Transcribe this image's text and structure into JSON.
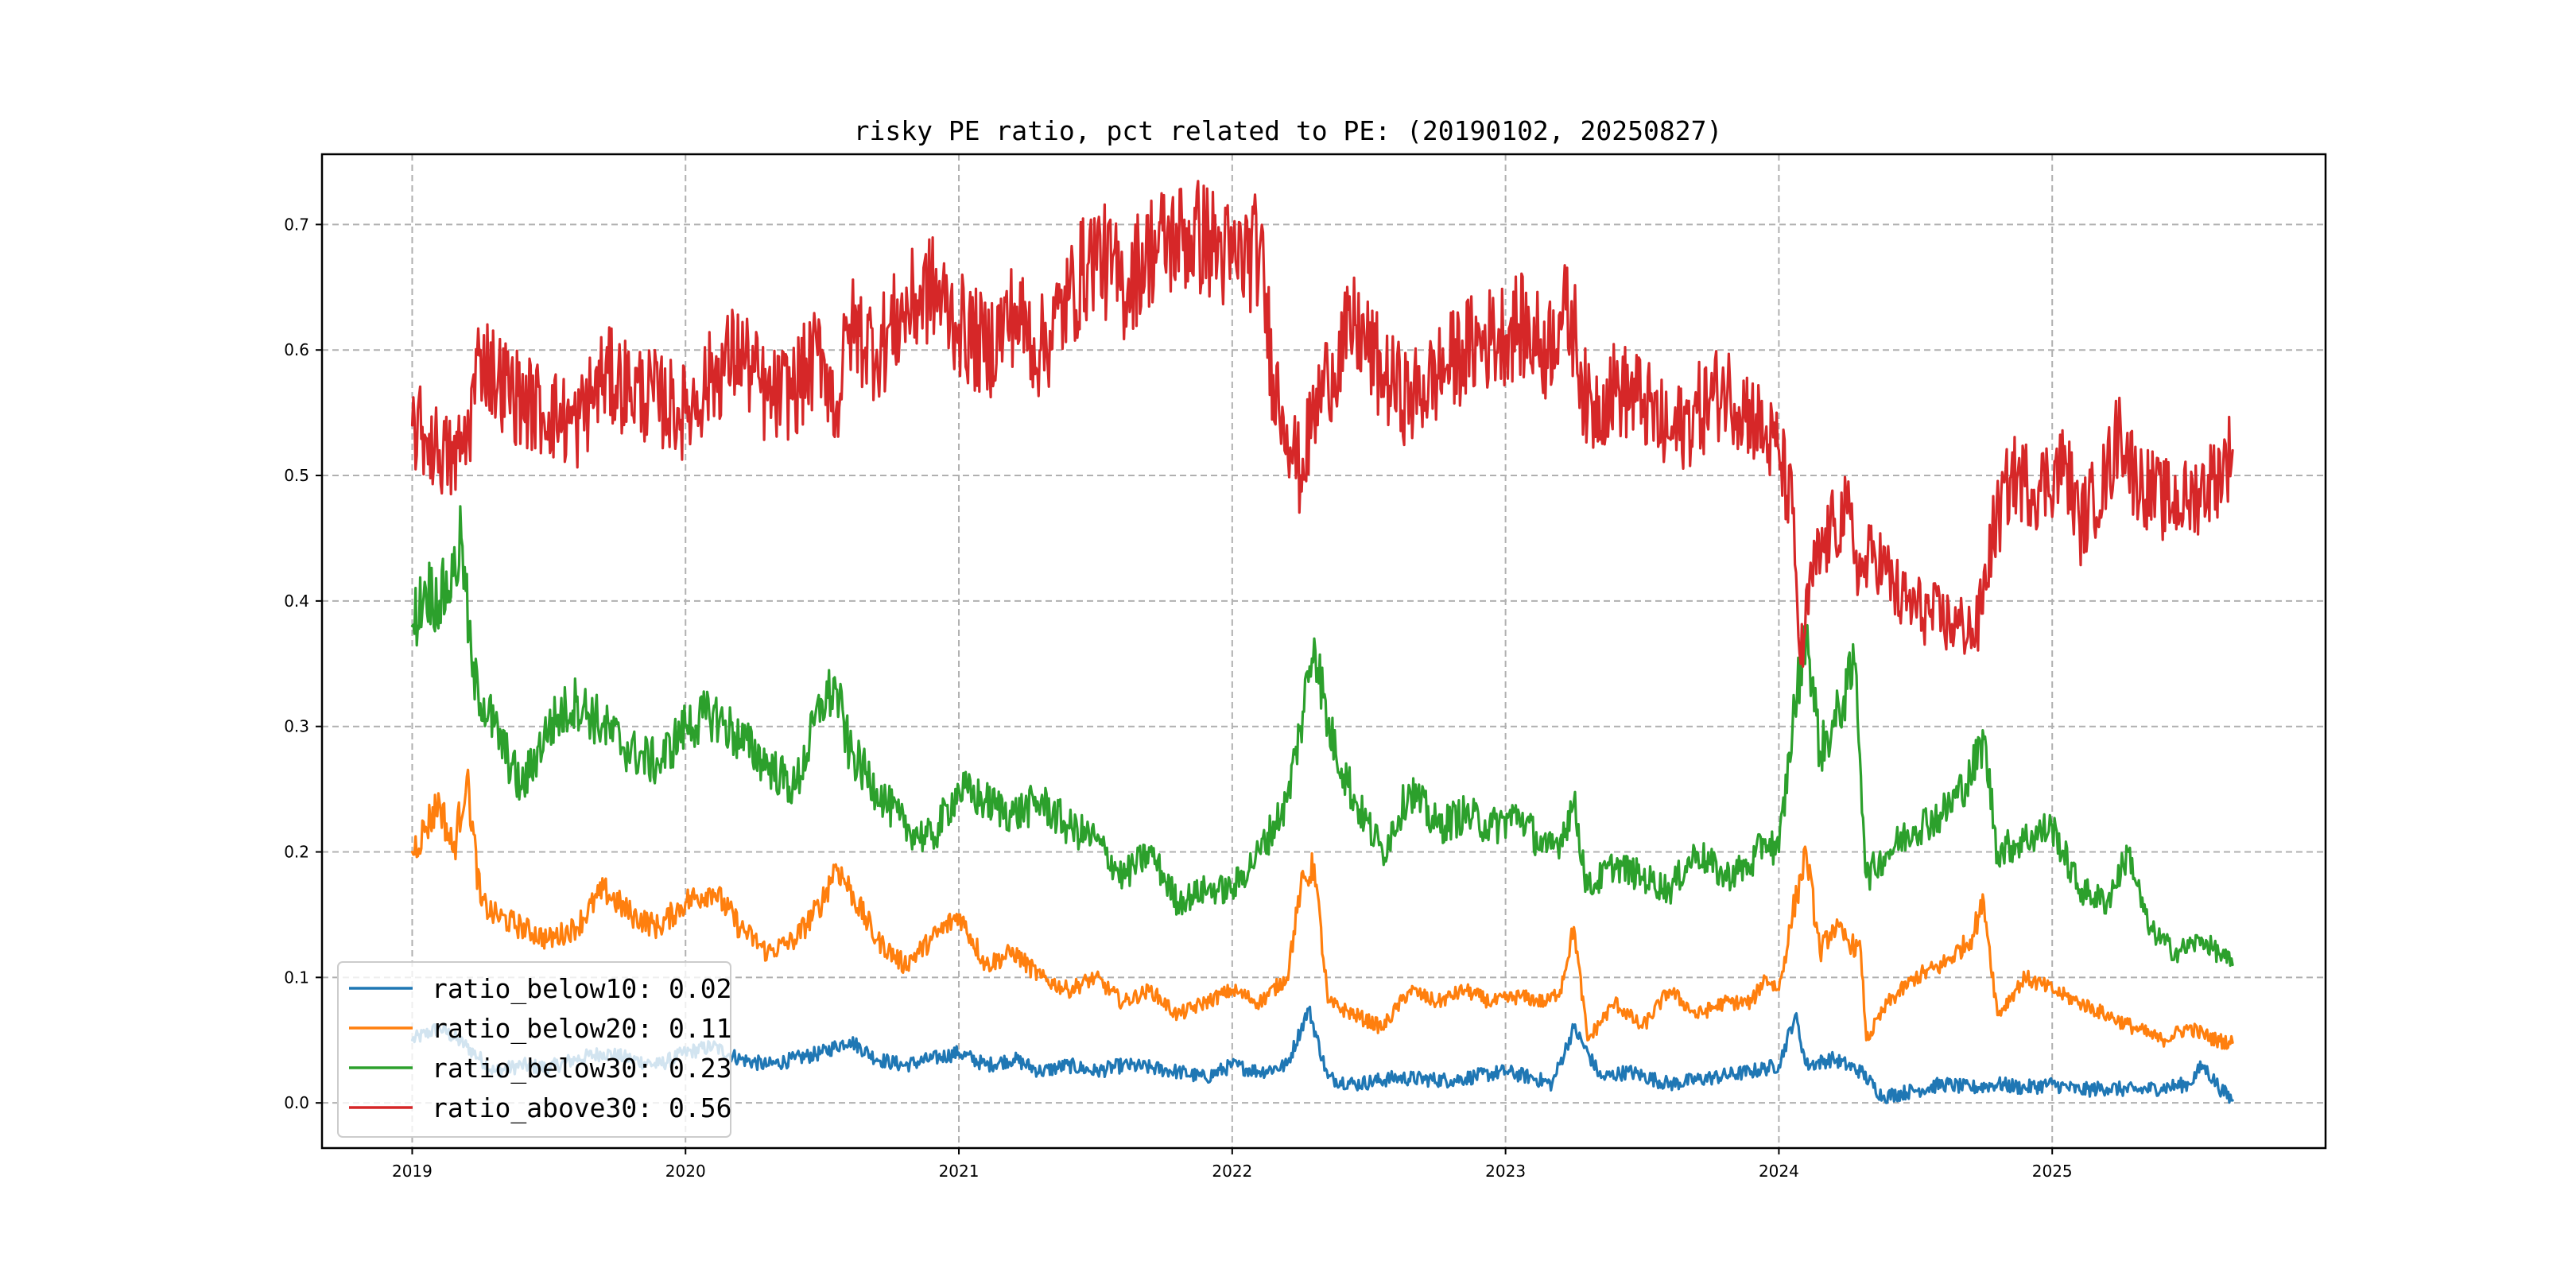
{
  "chart_data": {
    "type": "line",
    "title": "risky PE ratio, pct related to PE: (20190102, 20250827)",
    "xlabel": "",
    "ylabel": "",
    "x_ticks": [
      "2019",
      "2020",
      "2021",
      "2022",
      "2023",
      "2024",
      "2025"
    ],
    "y_ticks": [
      "0.0",
      "0.1",
      "0.2",
      "0.3",
      "0.4",
      "0.5",
      "0.6",
      "0.7"
    ],
    "xlim": [
      2018.67,
      2026.0
    ],
    "ylim": [
      -0.036,
      0.756
    ],
    "grid": true,
    "legend_position": "lower-left",
    "series": [
      {
        "name": "ratio_below10",
        "legend_label": "ratio_below10: 0.02",
        "color": "#1f77b4",
        "x": [
          2019.0,
          2019.1,
          2019.2,
          2019.3,
          2019.4,
          2019.5,
          2019.6,
          2019.7,
          2019.8,
          2019.9,
          2020.0,
          2020.1,
          2020.2,
          2020.3,
          2020.4,
          2020.5,
          2020.6,
          2020.7,
          2020.8,
          2020.9,
          2021.0,
          2021.1,
          2021.2,
          2021.3,
          2021.4,
          2021.5,
          2021.6,
          2021.7,
          2021.8,
          2021.9,
          2022.0,
          2022.1,
          2022.2,
          2022.28,
          2022.35,
          2022.45,
          2022.6,
          2022.8,
          2023.0,
          2023.1,
          2023.17,
          2023.25,
          2023.35,
          2023.45,
          2023.6,
          2023.75,
          2023.9,
          2024.0,
          2024.06,
          2024.1,
          2024.2,
          2024.3,
          2024.38,
          2024.5,
          2024.6,
          2024.7,
          2024.8,
          2024.9,
          2025.0,
          2025.1,
          2025.2,
          2025.3,
          2025.4,
          2025.5,
          2025.55,
          2025.62,
          2025.66
        ],
        "values": [
          0.05,
          0.06,
          0.045,
          0.025,
          0.03,
          0.028,
          0.035,
          0.04,
          0.035,
          0.03,
          0.04,
          0.045,
          0.035,
          0.03,
          0.035,
          0.04,
          0.05,
          0.035,
          0.03,
          0.035,
          0.04,
          0.03,
          0.035,
          0.025,
          0.03,
          0.025,
          0.03,
          0.028,
          0.025,
          0.02,
          0.03,
          0.025,
          0.03,
          0.075,
          0.02,
          0.015,
          0.02,
          0.018,
          0.025,
          0.02,
          0.015,
          0.06,
          0.02,
          0.025,
          0.015,
          0.02,
          0.025,
          0.03,
          0.07,
          0.03,
          0.035,
          0.025,
          0.005,
          0.01,
          0.015,
          0.012,
          0.015,
          0.012,
          0.015,
          0.01,
          0.012,
          0.01,
          0.012,
          0.015,
          0.03,
          0.01,
          0.002
        ]
      },
      {
        "name": "ratio_below20",
        "legend_label": "ratio_below20: 0.11",
        "color": "#ff7f0e",
        "x": [
          2019.0,
          2019.05,
          2019.1,
          2019.15,
          2019.2,
          2019.25,
          2019.3,
          2019.4,
          2019.5,
          2019.6,
          2019.7,
          2019.8,
          2019.9,
          2020.0,
          2020.1,
          2020.2,
          2020.3,
          2020.4,
          2020.5,
          2020.55,
          2020.6,
          2020.7,
          2020.8,
          2020.9,
          2021.0,
          2021.1,
          2021.2,
          2021.3,
          2021.4,
          2021.5,
          2021.6,
          2021.7,
          2021.8,
          2021.9,
          2022.0,
          2022.1,
          2022.2,
          2022.25,
          2022.3,
          2022.35,
          2022.45,
          2022.55,
          2022.65,
          2022.75,
          2022.85,
          2022.95,
          2023.05,
          2023.15,
          2023.2,
          2023.25,
          2023.3,
          2023.4,
          2023.5,
          2023.6,
          2023.7,
          2023.8,
          2023.9,
          2023.95,
          2024.0,
          2024.05,
          2024.1,
          2024.15,
          2024.2,
          2024.25,
          2024.3,
          2024.32,
          2024.4,
          2024.5,
          2024.6,
          2024.7,
          2024.75,
          2024.8,
          2024.9,
          2025.0,
          2025.1,
          2025.2,
          2025.3,
          2025.4,
          2025.5,
          2025.6,
          2025.66
        ],
        "values": [
          0.2,
          0.22,
          0.24,
          0.2,
          0.26,
          0.16,
          0.15,
          0.14,
          0.13,
          0.14,
          0.17,
          0.15,
          0.14,
          0.16,
          0.17,
          0.14,
          0.12,
          0.13,
          0.16,
          0.19,
          0.17,
          0.13,
          0.11,
          0.13,
          0.15,
          0.11,
          0.12,
          0.1,
          0.09,
          0.1,
          0.08,
          0.09,
          0.07,
          0.08,
          0.09,
          0.08,
          0.1,
          0.17,
          0.19,
          0.08,
          0.07,
          0.06,
          0.09,
          0.08,
          0.09,
          0.08,
          0.085,
          0.08,
          0.09,
          0.14,
          0.05,
          0.08,
          0.06,
          0.09,
          0.07,
          0.08,
          0.08,
          0.1,
          0.09,
          0.15,
          0.2,
          0.12,
          0.14,
          0.13,
          0.12,
          0.05,
          0.08,
          0.1,
          0.11,
          0.13,
          0.16,
          0.07,
          0.1,
          0.09,
          0.08,
          0.07,
          0.06,
          0.05,
          0.06,
          0.05,
          0.048
        ]
      },
      {
        "name": "ratio_below30",
        "legend_label": "ratio_below30: 0.23",
        "color": "#2ca02c",
        "x": [
          2019.0,
          2019.05,
          2019.1,
          2019.15,
          2019.18,
          2019.22,
          2019.3,
          2019.4,
          2019.5,
          2019.6,
          2019.7,
          2019.8,
          2019.9,
          2020.0,
          2020.1,
          2020.2,
          2020.3,
          2020.4,
          2020.5,
          2020.55,
          2020.6,
          2020.7,
          2020.8,
          2020.9,
          2021.0,
          2021.1,
          2021.2,
          2021.3,
          2021.4,
          2021.5,
          2021.6,
          2021.7,
          2021.8,
          2021.9,
          2022.0,
          2022.1,
          2022.2,
          2022.25,
          2022.3,
          2022.35,
          2022.45,
          2022.55,
          2022.65,
          2022.75,
          2022.85,
          2022.95,
          2023.05,
          2023.15,
          2023.2,
          2023.25,
          2023.3,
          2023.4,
          2023.5,
          2023.6,
          2023.7,
          2023.8,
          2023.9,
          2023.95,
          2024.0,
          2024.05,
          2024.1,
          2024.15,
          2024.2,
          2024.25,
          2024.28,
          2024.32,
          2024.4,
          2024.5,
          2024.6,
          2024.7,
          2024.75,
          2024.8,
          2024.9,
          2025.0,
          2025.1,
          2025.2,
          2025.28,
          2025.35,
          2025.45,
          2025.55,
          2025.66
        ],
        "values": [
          0.38,
          0.41,
          0.4,
          0.42,
          0.45,
          0.34,
          0.3,
          0.25,
          0.3,
          0.32,
          0.3,
          0.28,
          0.27,
          0.3,
          0.31,
          0.29,
          0.27,
          0.25,
          0.32,
          0.33,
          0.28,
          0.25,
          0.22,
          0.21,
          0.25,
          0.24,
          0.23,
          0.24,
          0.22,
          0.21,
          0.18,
          0.2,
          0.16,
          0.17,
          0.17,
          0.2,
          0.24,
          0.3,
          0.37,
          0.3,
          0.24,
          0.2,
          0.25,
          0.22,
          0.23,
          0.22,
          0.23,
          0.2,
          0.21,
          0.24,
          0.17,
          0.19,
          0.18,
          0.17,
          0.2,
          0.18,
          0.19,
          0.21,
          0.2,
          0.3,
          0.38,
          0.28,
          0.3,
          0.33,
          0.35,
          0.18,
          0.2,
          0.22,
          0.23,
          0.26,
          0.29,
          0.2,
          0.21,
          0.22,
          0.17,
          0.16,
          0.2,
          0.14,
          0.12,
          0.13,
          0.11
        ]
      },
      {
        "name": "ratio_above30",
        "legend_label": "ratio_above30: 0.56",
        "color": "#d62728",
        "x": [
          2019.0,
          2019.05,
          2019.1,
          2019.15,
          2019.2,
          2019.25,
          2019.3,
          2019.4,
          2019.5,
          2019.6,
          2019.7,
          2019.8,
          2019.9,
          2020.0,
          2020.1,
          2020.2,
          2020.3,
          2020.4,
          2020.5,
          2020.55,
          2020.6,
          2020.7,
          2020.8,
          2020.9,
          2021.0,
          2021.1,
          2021.2,
          2021.3,
          2021.4,
          2021.5,
          2021.6,
          2021.7,
          2021.8,
          2021.9,
          2022.0,
          2022.1,
          2022.15,
          2022.2,
          2022.25,
          2022.3,
          2022.35,
          2022.45,
          2022.55,
          2022.65,
          2022.75,
          2022.85,
          2022.95,
          2023.05,
          2023.15,
          2023.2,
          2023.25,
          2023.3,
          2023.4,
          2023.5,
          2023.6,
          2023.7,
          2023.8,
          2023.9,
          2023.95,
          2024.0,
          2024.05,
          2024.08,
          2024.12,
          2024.2,
          2024.25,
          2024.3,
          2024.35,
          2024.45,
          2024.55,
          2024.65,
          2024.7,
          2024.72,
          2024.78,
          2024.85,
          2024.95,
          2025.05,
          2025.1,
          2025.2,
          2025.25,
          2025.3,
          2025.4,
          2025.5,
          2025.6,
          2025.66
        ],
        "values": [
          0.54,
          0.53,
          0.52,
          0.51,
          0.53,
          0.6,
          0.58,
          0.56,
          0.55,
          0.54,
          0.58,
          0.57,
          0.56,
          0.55,
          0.58,
          0.6,
          0.56,
          0.57,
          0.6,
          0.55,
          0.62,
          0.6,
          0.63,
          0.65,
          0.62,
          0.6,
          0.63,
          0.6,
          0.64,
          0.68,
          0.65,
          0.68,
          0.69,
          0.69,
          0.67,
          0.68,
          0.58,
          0.54,
          0.5,
          0.55,
          0.58,
          0.62,
          0.58,
          0.56,
          0.58,
          0.6,
          0.61,
          0.62,
          0.6,
          0.63,
          0.62,
          0.55,
          0.57,
          0.56,
          0.53,
          0.55,
          0.57,
          0.55,
          0.53,
          0.52,
          0.47,
          0.35,
          0.42,
          0.46,
          0.47,
          0.42,
          0.44,
          0.4,
          0.39,
          0.38,
          0.38,
          0.37,
          0.45,
          0.5,
          0.49,
          0.51,
          0.46,
          0.5,
          0.54,
          0.5,
          0.48,
          0.48,
          0.5,
          0.52
        ]
      }
    ]
  }
}
